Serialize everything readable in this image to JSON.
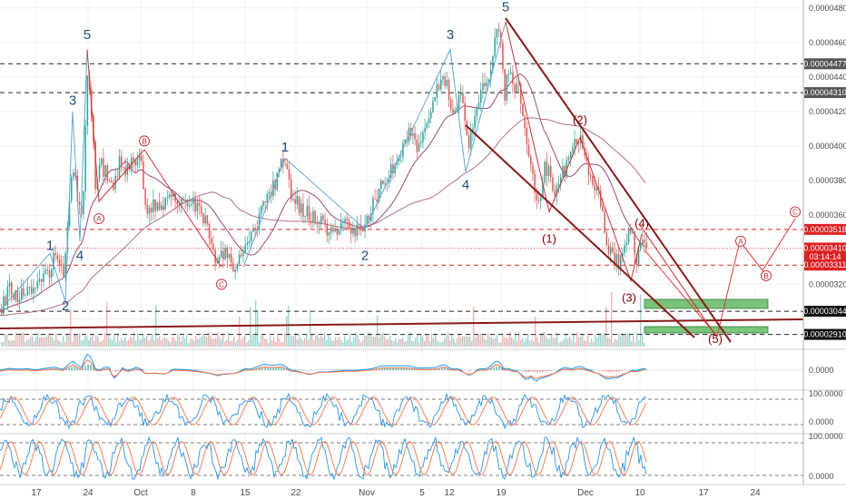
{
  "chart_data": {
    "type": "line",
    "ylim": [
      2.85e-05,
      4.82e-05
    ],
    "price_ticks": [
      "0.00004800",
      "0.00004600",
      "0.00004400",
      "0.00004200",
      "0.00004000",
      "0.00003800",
      "0.00003600",
      "0.00003200"
    ],
    "indicator_ticks": [
      "0.0000",
      "100.0000",
      "0.0000",
      "100.0000",
      "0.0000"
    ],
    "x_labels": [
      "17",
      "24",
      "Oct",
      "8",
      "15",
      "22",
      "Nov",
      "5",
      "12",
      "19",
      "Dec",
      "10",
      "17",
      "24"
    ],
    "price_levels": [
      {
        "label": "0.00004477",
        "value": 4.477e-05,
        "style": "dashed",
        "tag_color": "#555555"
      },
      {
        "label": "0.00004310",
        "value": 4.31e-05,
        "style": "dashed",
        "tag_color": "#555555"
      },
      {
        "label": "0.00003518",
        "value": 3.518e-05,
        "style": "dashed-red",
        "tag_color": "#e02020"
      },
      {
        "label": "0.00003410",
        "value": 3.41e-05,
        "style": "dotted-red",
        "tag_color": "#e02020"
      },
      {
        "label": "03:14:14",
        "value": 3.36e-05,
        "style": "none",
        "tag_color": "#e02020"
      },
      {
        "label": "0.00003311",
        "value": 3.311e-05,
        "style": "dashed-red",
        "tag_color": "#e02020"
      },
      {
        "label": "0.00003044",
        "value": 3.044e-05,
        "style": "dashed",
        "tag_color": "#111111"
      },
      {
        "label": "0.00002910",
        "value": 2.91e-05,
        "style": "dashed",
        "tag_color": "#111111"
      }
    ],
    "series": [
      {
        "name": "",
        "x": [
          0,
          10,
          20,
          30,
          40,
          50,
          60,
          65,
          70,
          75,
          80,
          85,
          90,
          95,
          100,
          105,
          110,
          115,
          120,
          125,
          130,
          140,
          150,
          155,
          160,
          170,
          180,
          190,
          200,
          210,
          220,
          230,
          240,
          245,
          250,
          260,
          270,
          280,
          290,
          300,
          310,
          315,
          320,
          330,
          340,
          350,
          360,
          370,
          380,
          390,
          400,
          410,
          420,
          430,
          440,
          450,
          460,
          470,
          480,
          490,
          495,
          500,
          505,
          510,
          515,
          520,
          530,
          540,
          545,
          550,
          555,
          560,
          565,
          570,
          575,
          580,
          590,
          595,
          600,
          605,
          610,
          620,
          630,
          635,
          640,
          645,
          650,
          660,
          670,
          680,
          690,
          695,
          700,
          705,
          710
        ],
        "values": [
          3.05e-05,
          3.18e-05,
          3.12e-05,
          3.15e-05,
          3.2e-05,
          3.25e-05,
          3.35e-05,
          3.3e-05,
          3.25e-05,
          3.6e-05,
          3.9e-05,
          3.65e-05,
          3.55e-05,
          4.42e-05,
          4.2e-05,
          3.7e-05,
          3.9e-05,
          3.85e-05,
          3.75e-05,
          3.8e-05,
          3.9e-05,
          3.85e-05,
          3.95e-05,
          3.9e-05,
          3.65e-05,
          3.65e-05,
          3.68e-05,
          3.72e-05,
          3.7e-05,
          3.68e-05,
          3.63e-05,
          3.5e-05,
          3.3e-05,
          3.38e-05,
          3.35e-05,
          3.3e-05,
          3.4e-05,
          3.5e-05,
          3.7e-05,
          3.75e-05,
          3.9e-05,
          3.85e-05,
          3.7e-05,
          3.65e-05,
          3.6e-05,
          3.57e-05,
          3.53e-05,
          3.52e-05,
          3.55e-05,
          3.5e-05,
          3.55e-05,
          3.65e-05,
          3.8e-05,
          3.85e-05,
          3.95e-05,
          4.1e-05,
          4e-05,
          4.1e-05,
          4.3e-05,
          4.4e-05,
          4.2e-05,
          4.18e-05,
          4.3e-05,
          4.2e-05,
          4e-05,
          4.1e-05,
          4.3e-05,
          4.45e-05,
          4.6e-05,
          4.7e-05,
          4.3e-05,
          4.45e-05,
          4.32e-05,
          4.4e-05,
          4.2e-05,
          4e-05,
          3.68e-05,
          3.75e-05,
          3.9e-05,
          3.82e-05,
          3.75e-05,
          3.85e-05,
          3.98e-05,
          4.05e-05,
          4.02e-05,
          3.9e-05,
          3.85e-05,
          3.7e-05,
          3.4e-05,
          3.32e-05,
          3.48e-05,
          3.52e-05,
          3.35e-05,
          3.4e-05,
          3.45e-05
        ]
      }
    ],
    "wave_labels": [
      {
        "text": "1",
        "x": 55,
        "y": 3.4e-05,
        "color": "blue"
      },
      {
        "text": "2",
        "x": 72,
        "y": 3.05e-05,
        "color": "blue"
      },
      {
        "text": "3",
        "x": 80,
        "y": 4.24e-05,
        "color": "blue"
      },
      {
        "text": "4",
        "x": 88,
        "y": 3.34e-05,
        "color": "blue"
      },
      {
        "text": "5",
        "x": 96,
        "y": 4.62e-05,
        "color": "blue"
      },
      {
        "text": "1",
        "x": 314,
        "y": 3.97e-05,
        "color": "blue"
      },
      {
        "text": "2",
        "x": 402,
        "y": 3.34e-05,
        "color": "blue"
      },
      {
        "text": "3",
        "x": 496,
        "y": 4.62e-05,
        "color": "blue"
      },
      {
        "text": "4",
        "x": 513,
        "y": 3.75e-05,
        "color": "blue"
      },
      {
        "text": "5",
        "x": 557,
        "y": 4.78e-05,
        "color": "blue"
      },
      {
        "text": "(1)",
        "x": 605,
        "y": 3.44e-05,
        "color": "red"
      },
      {
        "text": "(2)",
        "x": 639,
        "y": 4.13e-05,
        "color": "red"
      },
      {
        "text": "(3)",
        "x": 693,
        "y": 3.1e-05,
        "color": "red"
      },
      {
        "text": "(4)",
        "x": 707,
        "y": 3.53e-05,
        "color": "red"
      },
      {
        "text": "(5)",
        "x": 788,
        "y": 2.86e-05,
        "color": "red"
      }
    ],
    "circle_labels": [
      {
        "text": "A",
        "x": 109,
        "y": 3.58e-05
      },
      {
        "text": "B",
        "x": 159,
        "y": 4.03e-05
      },
      {
        "text": "C",
        "x": 244,
        "y": 3.2e-05
      },
      {
        "text": "A",
        "x": 816,
        "y": 3.45e-05
      },
      {
        "text": "B",
        "x": 844,
        "y": 3.25e-05
      },
      {
        "text": "C",
        "x": 876,
        "y": 3.62e-05
      }
    ],
    "projection_path": [
      [
        710,
        3.4e-05
      ],
      [
        790,
        2.9e-05
      ],
      [
        815,
        3.45e-05
      ],
      [
        840,
        3.28e-05
      ],
      [
        876,
        3.58e-05
      ]
    ],
    "colors": {
      "up": "#26a69a",
      "down": "#ef5350",
      "wave_blue": "#1f4e79",
      "wave_red": "#8b0000",
      "trendline": "#8b1a1a",
      "ma": "#9c4a78",
      "zone": "#4caf50"
    }
  }
}
